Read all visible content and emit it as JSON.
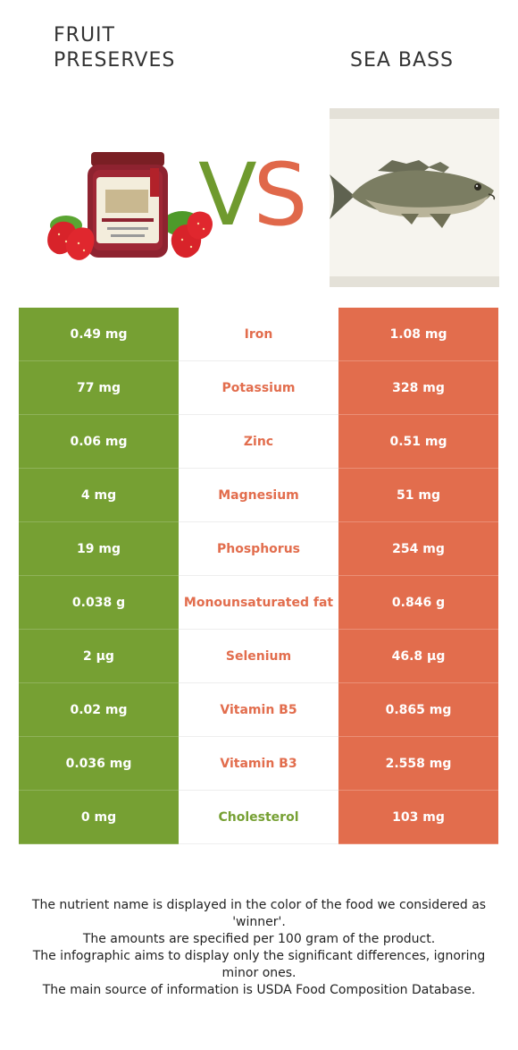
{
  "left_food": {
    "title_line1": "FRUIT",
    "title_line2": "PRESERVES",
    "image": "strawberry-jam-jar",
    "color": "#76a033"
  },
  "right_food": {
    "title": "SEA BASS",
    "image": "sea-bass-fish",
    "color": "#e26d4d"
  },
  "vs": {
    "v": "V",
    "s": "S"
  },
  "rows": [
    {
      "left": "0.49 mg",
      "nutrient": "Iron",
      "right": "1.08 mg",
      "winner": "right"
    },
    {
      "left": "77 mg",
      "nutrient": "Potassium",
      "right": "328 mg",
      "winner": "right"
    },
    {
      "left": "0.06 mg",
      "nutrient": "Zinc",
      "right": "0.51 mg",
      "winner": "right"
    },
    {
      "left": "4 mg",
      "nutrient": "Magnesium",
      "right": "51 mg",
      "winner": "right"
    },
    {
      "left": "19 mg",
      "nutrient": "Phosphorus",
      "right": "254 mg",
      "winner": "right"
    },
    {
      "left": "0.038 g",
      "nutrient": "Monounsaturated fat",
      "right": "0.846 g",
      "winner": "right"
    },
    {
      "left": "2 µg",
      "nutrient": "Selenium",
      "right": "46.8 µg",
      "winner": "right"
    },
    {
      "left": "0.02 mg",
      "nutrient": "Vitamin B5",
      "right": "0.865 mg",
      "winner": "right"
    },
    {
      "left": "0.036 mg",
      "nutrient": "Vitamin B3",
      "right": "2.558 mg",
      "winner": "right"
    },
    {
      "left": "0 mg",
      "nutrient": "Cholesterol",
      "right": "103 mg",
      "winner": "left"
    }
  ],
  "footnote": {
    "line1": "The nutrient name is displayed in the color of the food we considered as 'winner'.",
    "line2": "The amounts are specified per 100 gram of the product.",
    "line3": "The infographic aims to display only the significant differences, ignoring minor ones.",
    "line4": "The main source of information is USDA Food Composition Database."
  }
}
